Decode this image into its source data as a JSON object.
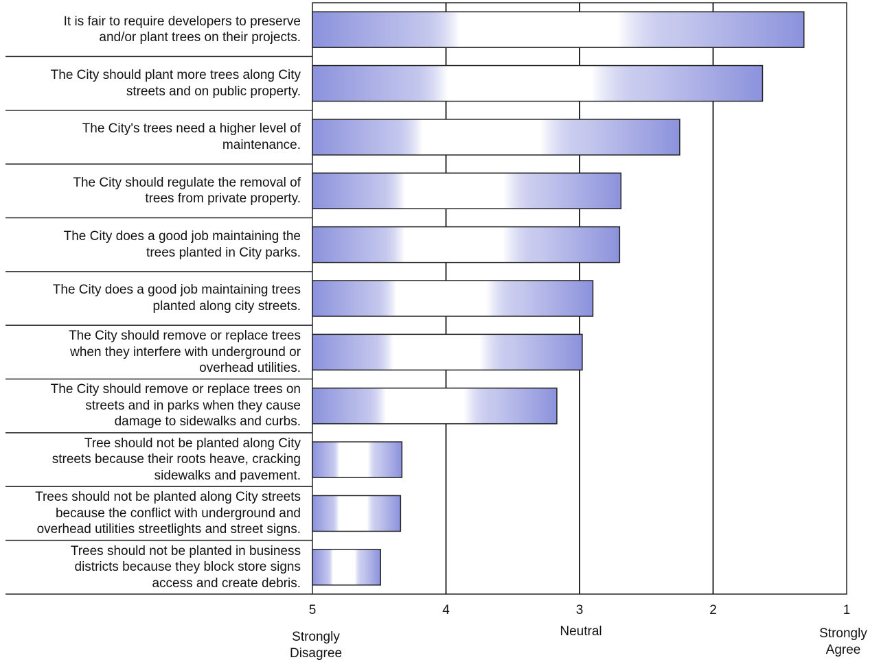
{
  "colors": {
    "bar_fill": "#8c92dc",
    "bar_stroke": "#222222",
    "grid": "#111111"
  },
  "chart_data": {
    "type": "bar",
    "orientation": "horizontal",
    "categories": [
      "It is fair to require developers to preserve\nand/or plant trees on their projects.",
      "The City should plant more trees along City\nstreets and on public property.",
      "The City's trees need a higher level of\nmaintenance.",
      "The City should regulate the removal of\ntrees from private property.",
      "The City does a good job maintaining the\ntrees planted in City parks.",
      "The City does a good job maintaining trees\nplanted along city streets.",
      "The City should remove or replace trees\nwhen they interfere with underground or\noverhead utilities.",
      "The City should remove or replace trees on\nstreets and in parks when they cause\ndamage to sidewalks and curbs.",
      "Tree should not be planted along City\nstreets because their roots heave, cracking\nsidewalks and pavement.",
      "Trees should not be planted along City streets\nbecause the conflict with underground and\noverhead utilities streetlights and street signs.",
      "Trees should not be planted in business\ndistricts because they block store signs\naccess and create debris."
    ],
    "values": [
      1.32,
      1.63,
      2.25,
      2.69,
      2.7,
      2.9,
      2.98,
      3.17,
      4.33,
      4.34,
      4.49
    ],
    "xlim": [
      5,
      1
    ],
    "xticks": [
      "5",
      "4",
      "3",
      "2",
      "1"
    ],
    "tick_values": [
      5,
      4,
      3,
      2,
      1
    ],
    "anchors": {
      "left": "Strongly\nDisagree",
      "middle": "Neutral",
      "right": "Strongly\nAgree"
    },
    "grid": true
  }
}
